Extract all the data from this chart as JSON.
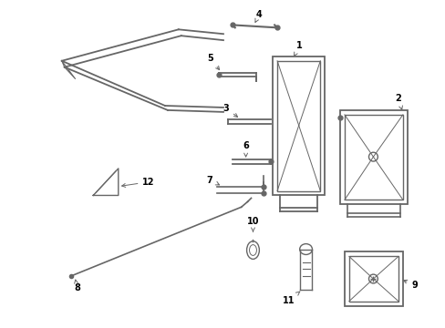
{
  "bg_color": "#ffffff",
  "line_color": "#666666",
  "text_color": "#000000",
  "figsize": [
    4.89,
    3.6
  ],
  "dpi": 100
}
